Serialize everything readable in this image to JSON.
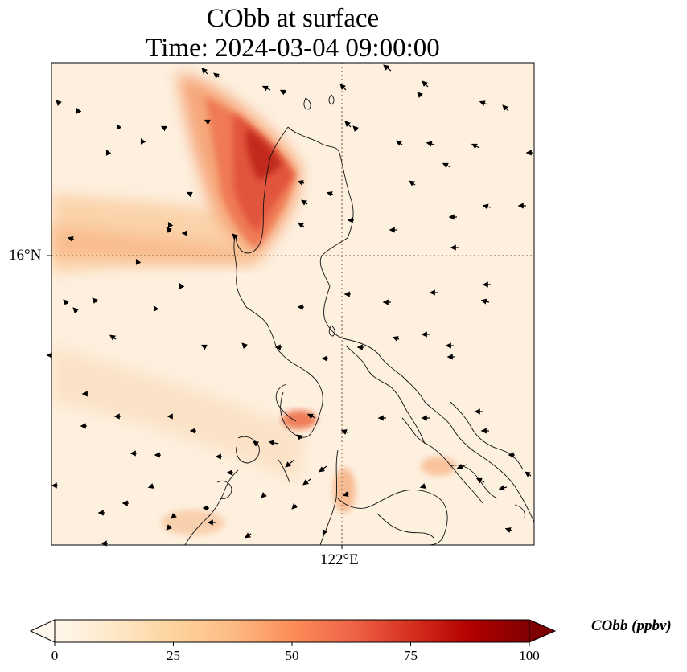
{
  "title": {
    "line1": "CObb at surface",
    "line2": "Time: 2024-03-04 09:00:00"
  },
  "axes": {
    "lat_label": "16°N",
    "lon_label": "122°E",
    "gridlines": "dotted"
  },
  "colorbar": {
    "label": "CObb (ppbv)",
    "colormap": "OrRd",
    "min": 0,
    "max": 100,
    "ticks": [
      "0",
      "25",
      "50",
      "75",
      "100"
    ],
    "extend": "both",
    "colors": [
      "#fff7ec",
      "#fee8c8",
      "#fdd49e",
      "#fdbb84",
      "#fc8d59",
      "#ef6548",
      "#d7301f",
      "#b30000",
      "#7f0000"
    ]
  },
  "field_notes": {
    "background_level_ppbv": 8,
    "plume_peak_ppbv": 85,
    "wind_vectors": "northeasterly flow, arrows pointing west/southwest"
  }
}
